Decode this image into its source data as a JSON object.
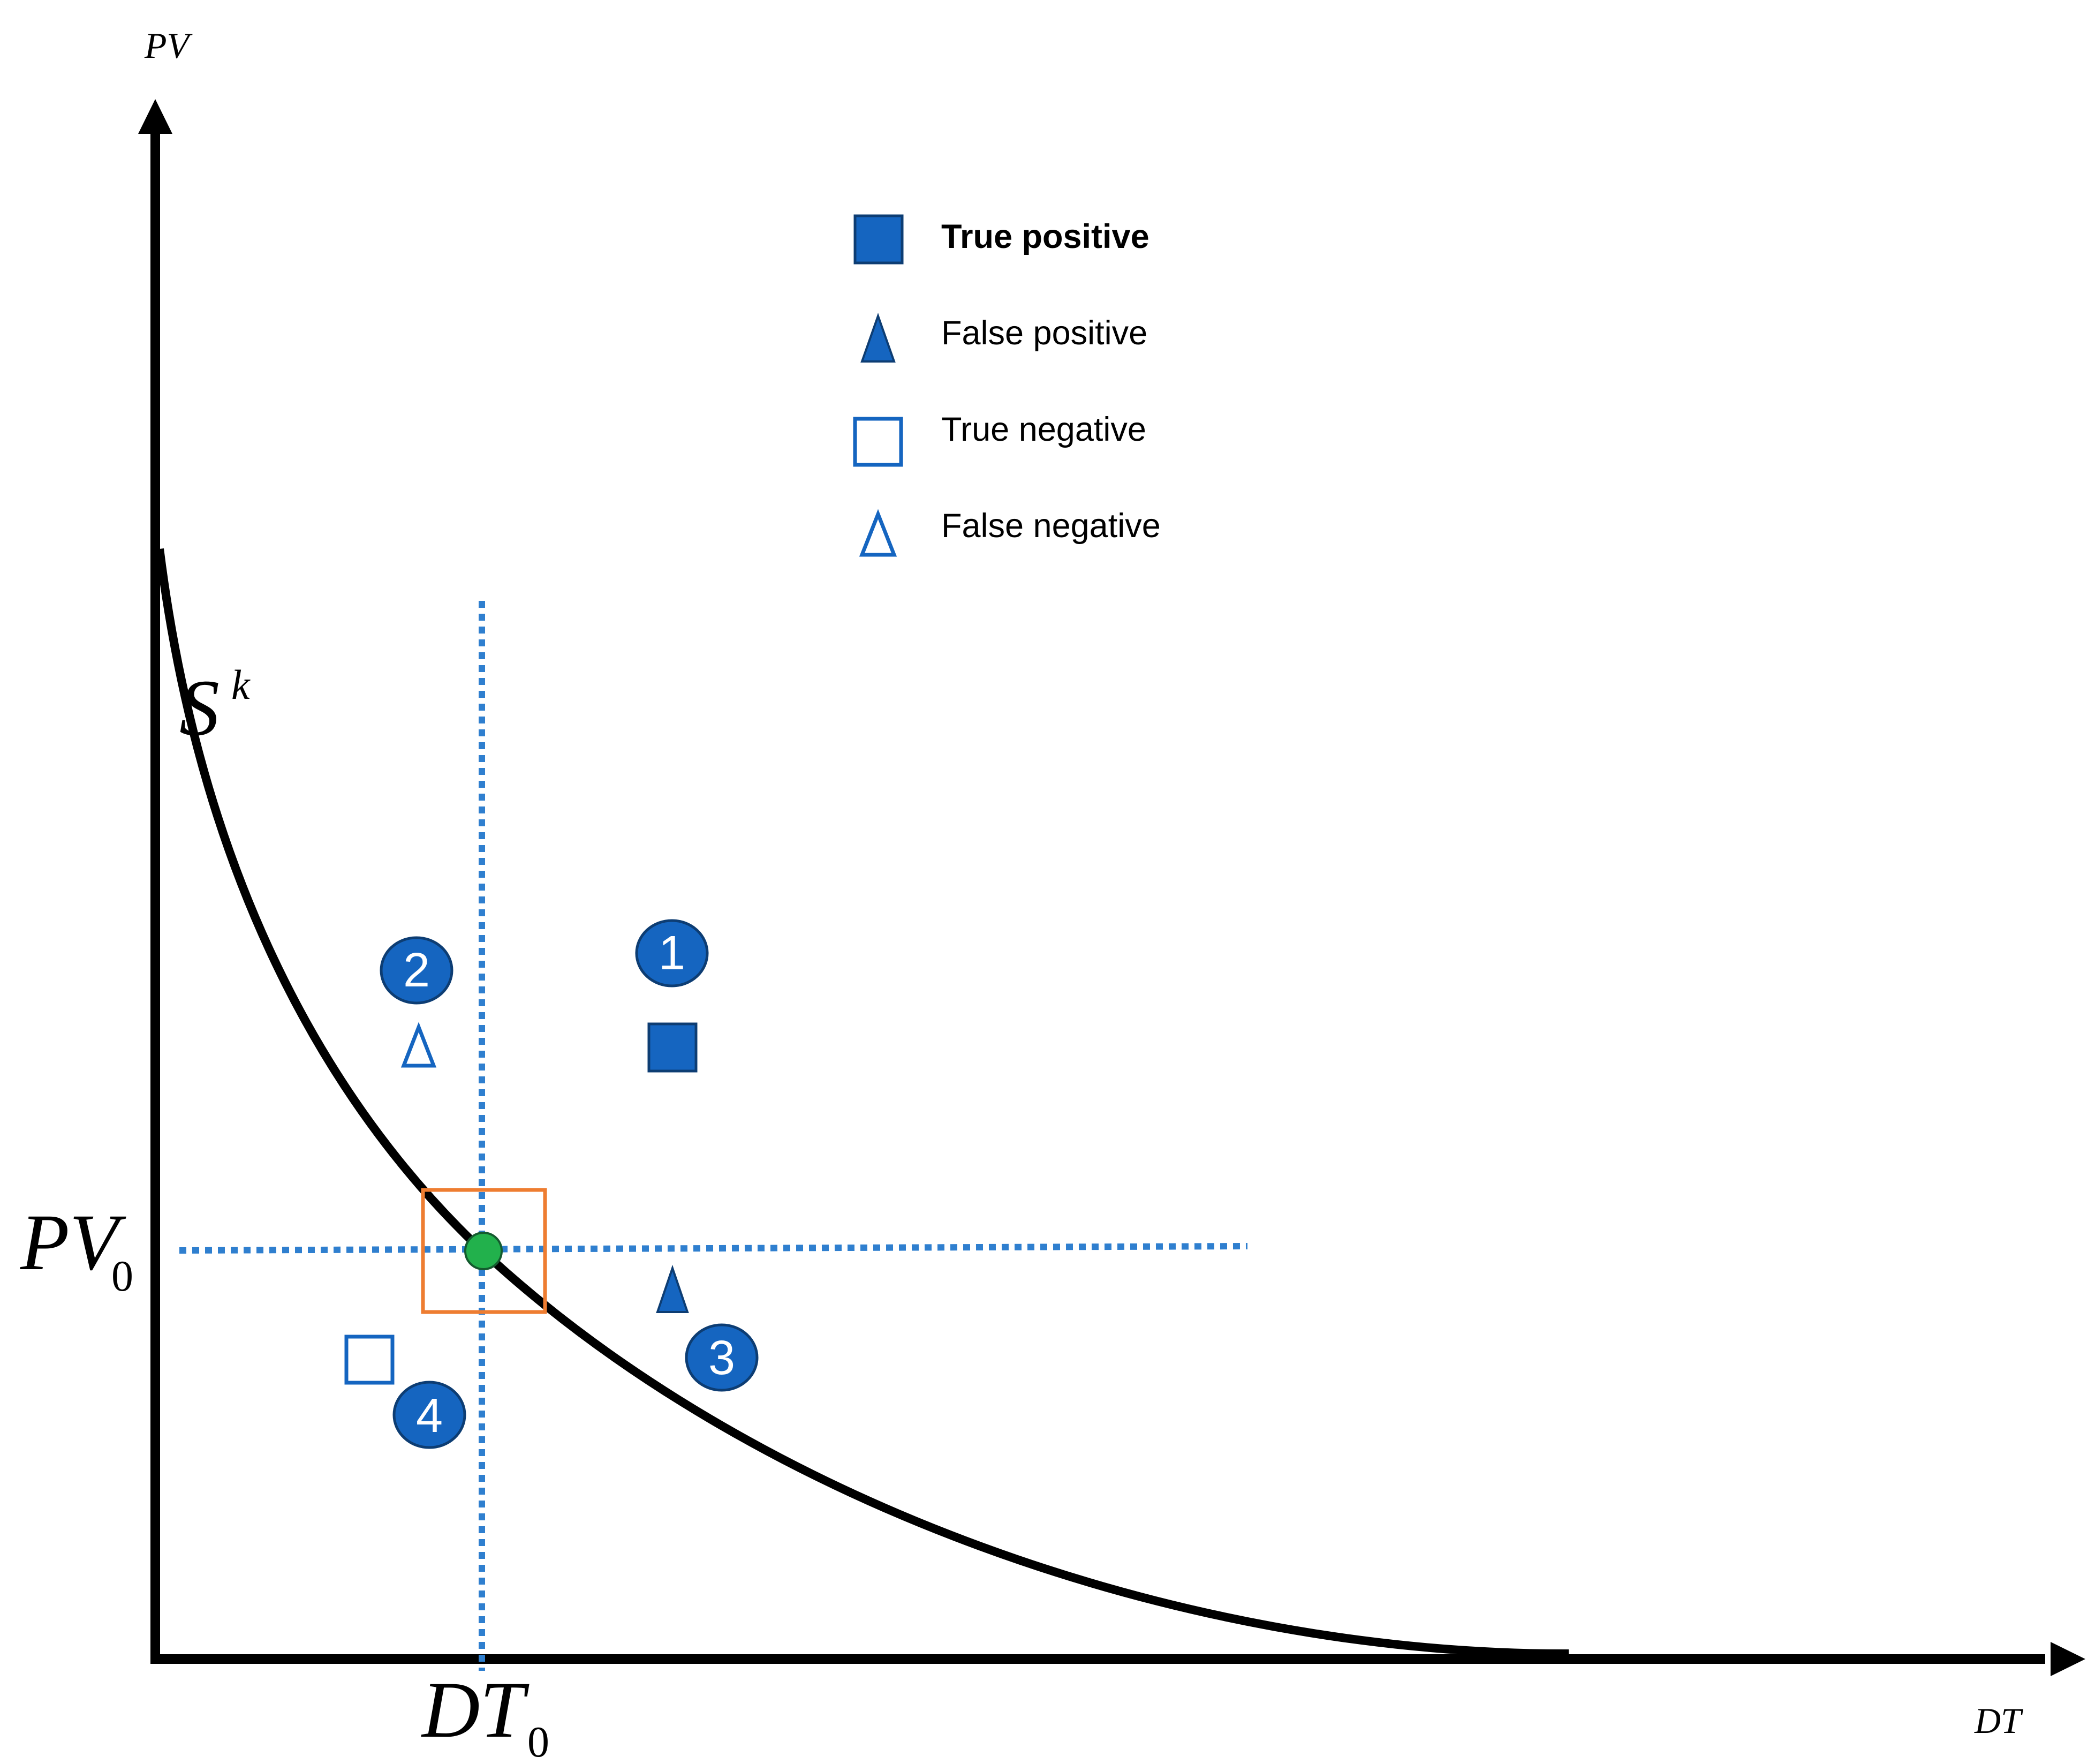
{
  "axes": {
    "y_label": "PV",
    "x_label": "DT"
  },
  "curve_label": {
    "base": "S",
    "sup": "k"
  },
  "threshold": {
    "pv_base": "PV",
    "pv_sub": "0",
    "dt_base": "DT",
    "dt_sub": "0"
  },
  "legend": [
    {
      "label": "True positive",
      "marker": "filled-square",
      "bold": true
    },
    {
      "label": "False positive",
      "marker": "filled-triangle",
      "bold": false
    },
    {
      "label": "True negative",
      "marker": "hollow-square",
      "bold": false
    },
    {
      "label": "False negative",
      "marker": "hollow-triangle",
      "bold": false
    }
  ],
  "badges": [
    "1",
    "2",
    "3",
    "4"
  ],
  "colors": {
    "marker_blue": "#1565c0",
    "dotted_line": "#2f7fcf",
    "threshold_box": "#ee7d31",
    "threshold_point": "#22b14c",
    "axis": "#000000"
  }
}
